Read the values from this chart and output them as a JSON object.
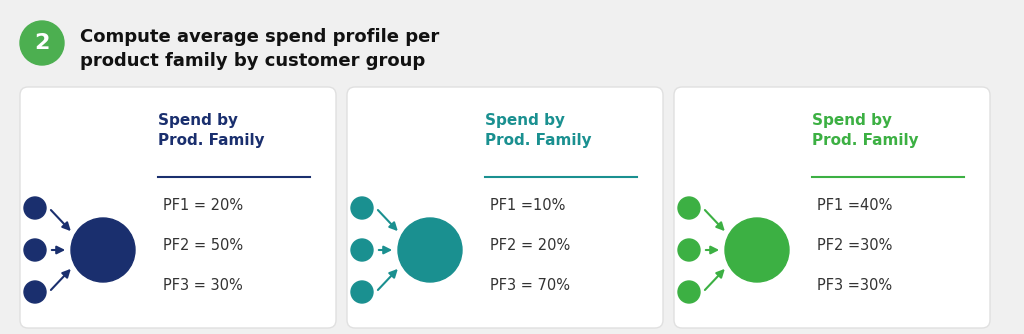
{
  "title_number": "2",
  "title_number_bg": "#4caf50",
  "title_text_line1": "Compute average spend profile per",
  "title_text_line2": "product family by customer group",
  "title_color": "#111111",
  "background_color": "#f0f0f0",
  "card_bg": "#ffffff",
  "cards": [
    {
      "header": "Spend by\nProd. Family",
      "header_color": "#1a2f6e",
      "line_color": "#1a2f6e",
      "node_color": "#1a2f6e",
      "pf1": "PF1 = 20%",
      "pf2": "PF2 = 50%",
      "pf3": "PF3 = 30%"
    },
    {
      "header": "Spend by\nProd. Family",
      "header_color": "#1a9090",
      "line_color": "#1a9090",
      "node_color": "#1a9090",
      "pf1": "PF1 =10%",
      "pf2": "PF2 = 20%",
      "pf3": "PF3 = 70%"
    },
    {
      "header": "Spend by\nProd. Family",
      "header_color": "#3cb043",
      "line_color": "#3cb043",
      "node_color": "#3cb043",
      "pf1": "PF1 =40%",
      "pf2": "PF2 =30%",
      "pf3": "PF3 =30%"
    }
  ],
  "text_color": "#333333"
}
